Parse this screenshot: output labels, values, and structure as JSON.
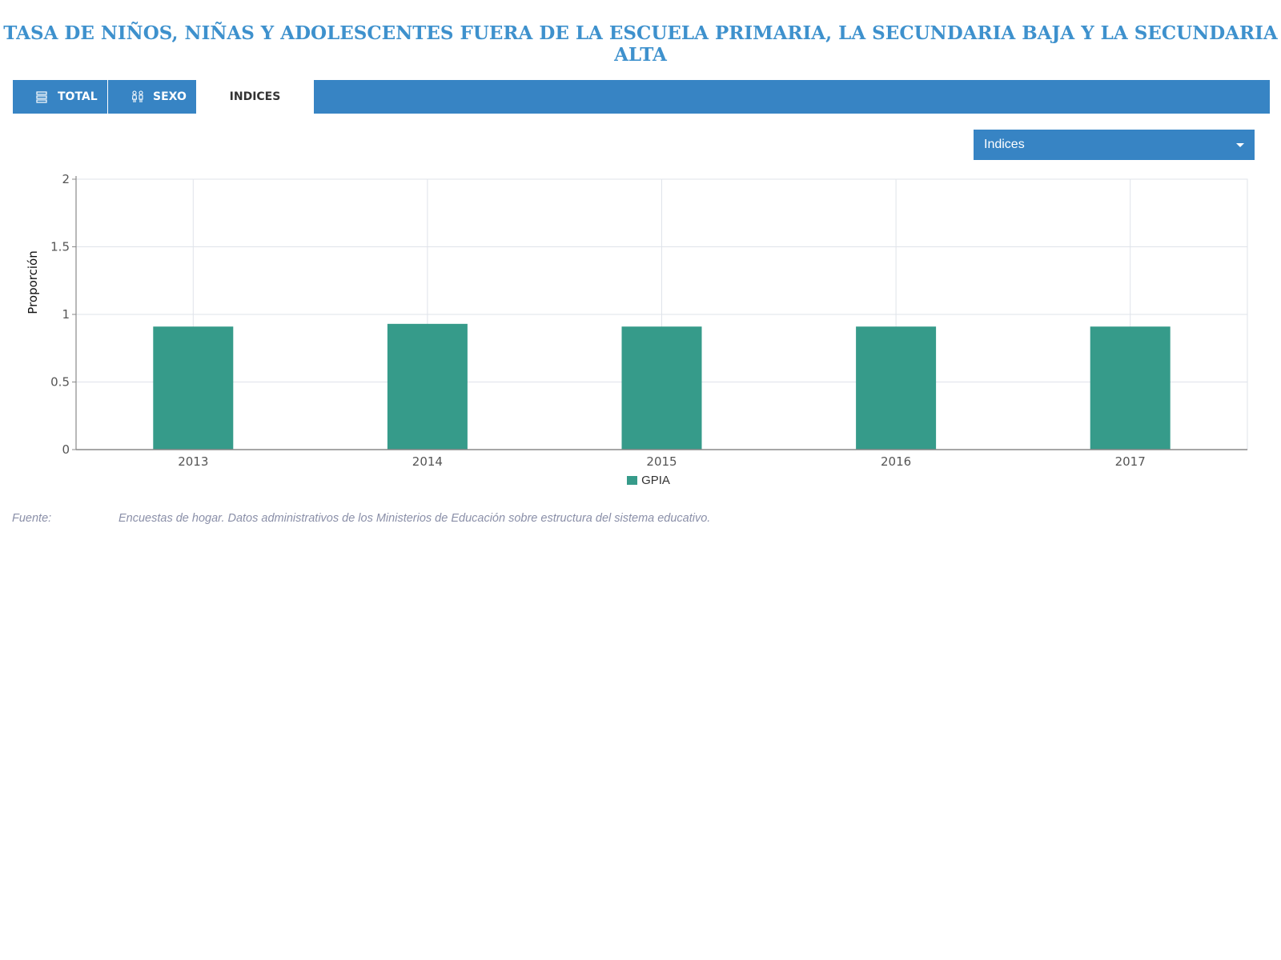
{
  "header": {
    "title": "TASA DE NIÑOS, NIÑAS Y ADOLESCENTES FUERA DE LA ESCUELA PRIMARIA, LA SECUNDARIA BAJA Y LA SECUNDARIA ALTA"
  },
  "tabs": [
    {
      "label": "TOTAL",
      "icon": "stack-icon",
      "active": false
    },
    {
      "label": "SEXO",
      "icon": "gender-icon",
      "active": false
    },
    {
      "label": "INDICES",
      "active": true
    }
  ],
  "dropdown": {
    "selected": "Indices"
  },
  "colors": {
    "accent": "#3784c4",
    "title": "#3e91cd",
    "bar": "#369b8a",
    "grid": "#dfe3ea"
  },
  "chart_data": {
    "type": "bar",
    "categories": [
      "2013",
      "2014",
      "2015",
      "2016",
      "2017"
    ],
    "series": [
      {
        "name": "GPIA",
        "values": [
          0.91,
          0.93,
          0.91,
          0.91,
          0.91
        ]
      }
    ],
    "title": "",
    "xlabel": "",
    "ylabel": "Proporción",
    "ylim": [
      0,
      2
    ],
    "yticks": [
      "0",
      "0.5",
      "1",
      "1.5",
      "2"
    ],
    "grid": true,
    "legend": "bottom-center"
  },
  "source": {
    "label": "Fuente:",
    "text": "Encuestas de hogar. Datos administrativos de los Ministerios de Educación sobre estructura del sistema educativo."
  }
}
